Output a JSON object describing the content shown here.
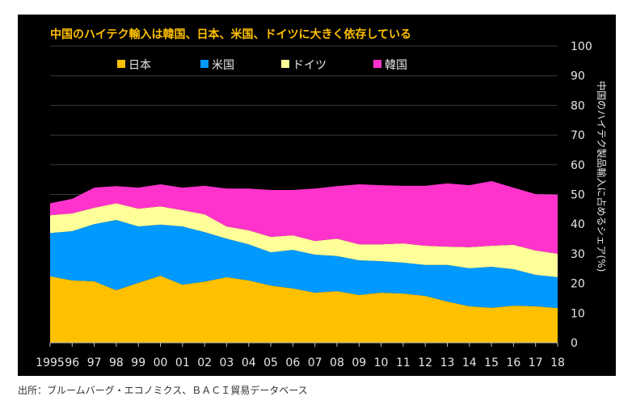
{
  "chart_data": {
    "type": "area",
    "stacked": true,
    "title": "中国のハイテク輸入は韓国、日本、米国、ドイツに大きく依存している",
    "xlabel": "",
    "ylabel": "中国のハイテク製品輸入に占めるシェア(%)",
    "ylim": [
      0,
      100
    ],
    "yticks": [
      0,
      10,
      20,
      30,
      40,
      50,
      60,
      70,
      80,
      90,
      100
    ],
    "y_axis_side": "right",
    "grid": true,
    "legend_position": "top",
    "x": [
      1995,
      1996,
      1997,
      1998,
      1999,
      2000,
      2001,
      2002,
      2003,
      2004,
      2005,
      2006,
      2007,
      2008,
      2009,
      2010,
      2011,
      2012,
      2013,
      2014,
      2015,
      2016,
      2017,
      2018
    ],
    "xtick_labels": [
      "1995",
      "96",
      "97",
      "98",
      "99",
      "00",
      "01",
      "02",
      "03",
      "04",
      "05",
      "06",
      "07",
      "08",
      "09",
      "10",
      "11",
      "12",
      "13",
      "14",
      "15",
      "16",
      "17",
      "18"
    ],
    "series": [
      {
        "name": "日本",
        "color": "#ffc000",
        "values": [
          22.4,
          21.0,
          20.7,
          17.7,
          20.2,
          22.6,
          19.6,
          20.6,
          22.1,
          21.0,
          19.3,
          18.3,
          16.9,
          17.4,
          16.1,
          16.9,
          16.6,
          15.8,
          13.9,
          12.3,
          11.8,
          12.5,
          12.3,
          11.7
        ]
      },
      {
        "name": "米国",
        "color": "#0099ff",
        "values": [
          14.6,
          16.6,
          19.3,
          23.7,
          19.0,
          17.2,
          19.6,
          16.7,
          13.0,
          12.2,
          11.2,
          13.0,
          12.8,
          11.8,
          11.7,
          10.6,
          10.4,
          10.4,
          12.3,
          12.8,
          13.8,
          12.3,
          10.6,
          10.4
        ]
      },
      {
        "name": "ドイツ",
        "color": "#ffff99",
        "values": [
          6.0,
          6.0,
          5.5,
          5.6,
          6.0,
          6.2,
          5.5,
          6.0,
          4.1,
          4.7,
          5.2,
          4.9,
          4.6,
          5.9,
          5.4,
          5.7,
          6.5,
          6.5,
          6.2,
          7.1,
          7.1,
          8.2,
          8.2,
          7.9
        ]
      },
      {
        "name": "韓国",
        "color": "#ff33cc",
        "values": [
          4.0,
          4.9,
          6.8,
          5.8,
          7.1,
          7.4,
          7.6,
          9.6,
          12.8,
          14.1,
          15.8,
          15.3,
          17.7,
          17.7,
          20.2,
          19.9,
          19.4,
          20.2,
          21.3,
          20.9,
          21.8,
          19.3,
          19.0,
          19.9
        ]
      }
    ]
  },
  "colors": {
    "background": "#000000",
    "title": "#ffc000",
    "gridline": "#3a3a3a",
    "text": "#e6e6e6"
  },
  "source_note": "出所：ブルームバーグ・エコノミクス、ＢＡＣＩ貿易データベース"
}
